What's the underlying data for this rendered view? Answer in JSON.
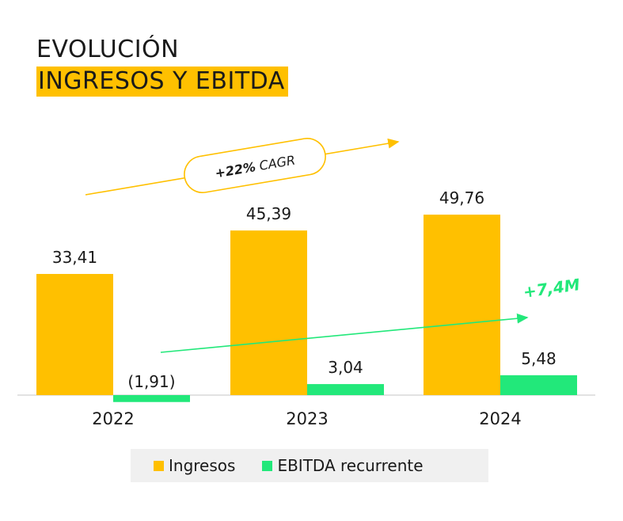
{
  "title": {
    "line1": "EVOLUCIÓN",
    "line2": "INGRESOS Y EBITDA"
  },
  "colors": {
    "ingresos": "#FFC000",
    "ebitda": "#22E87A",
    "title_highlight": "#FFC000",
    "baseline": "#d9d9d9",
    "legend_bg": "#f0f0f0"
  },
  "chart_data": {
    "type": "bar",
    "categories": [
      "2022",
      "2023",
      "2024"
    ],
    "series": [
      {
        "name": "Ingresos",
        "values": [
          33.41,
          45.39,
          49.76
        ],
        "labels": [
          "33,41",
          "45,39",
          "49,76"
        ]
      },
      {
        "name": "EBITDA recurrente",
        "values": [
          -1.91,
          3.04,
          5.48
        ],
        "labels": [
          "(1,91)",
          "3,04",
          "5,48"
        ]
      }
    ],
    "annotations": {
      "cagr_prefix": "+22%",
      "cagr_suffix": " CAGR",
      "ebitda_growth": "+7,4M"
    },
    "legend": [
      "Ingresos",
      "EBITDA recurrente"
    ],
    "legend_position": "bottom",
    "grid": false
  }
}
